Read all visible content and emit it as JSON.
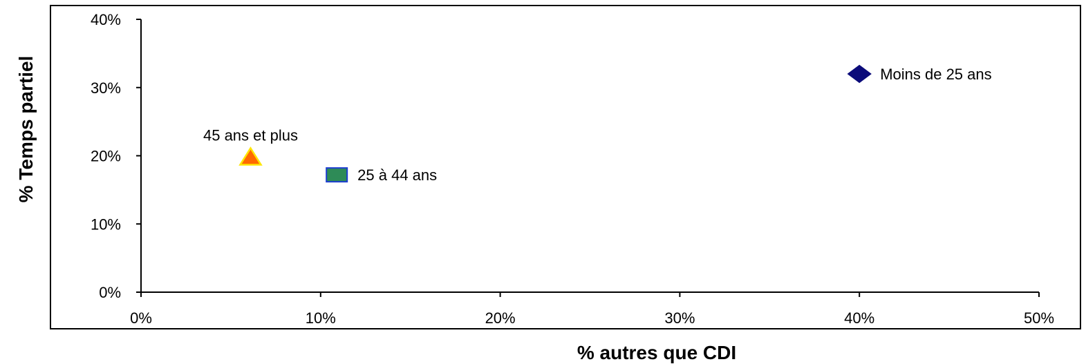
{
  "chart_data": {
    "type": "scatter",
    "xlabel": "% autres que CDI",
    "ylabel": "% Temps partiel",
    "xlim": [
      0,
      50
    ],
    "ylim": [
      0,
      40
    ],
    "x_ticks": [
      "0%",
      "10%",
      "20%",
      "30%",
      "40%",
      "50%"
    ],
    "y_ticks": [
      "0%",
      "10%",
      "20%",
      "30%",
      "40%"
    ],
    "grid": false,
    "legend": "none",
    "points": [
      {
        "label": "Moins de 25 ans",
        "x": 40,
        "y": 32,
        "marker": "diamond",
        "fill": "#0b0b7a",
        "stroke": "#0b0b7a",
        "label_side": "right"
      },
      {
        "label": "25 à 44 ans",
        "x": 10.9,
        "y": 17.2,
        "marker": "square",
        "fill": "#2e8b57",
        "stroke": "#1c3cd1",
        "label_side": "right"
      },
      {
        "label": "45 ans et plus",
        "x": 6.1,
        "y": 19.8,
        "marker": "triangle",
        "fill": "#ff6a00",
        "stroke": "#ffe600",
        "label_side": "above"
      }
    ]
  }
}
